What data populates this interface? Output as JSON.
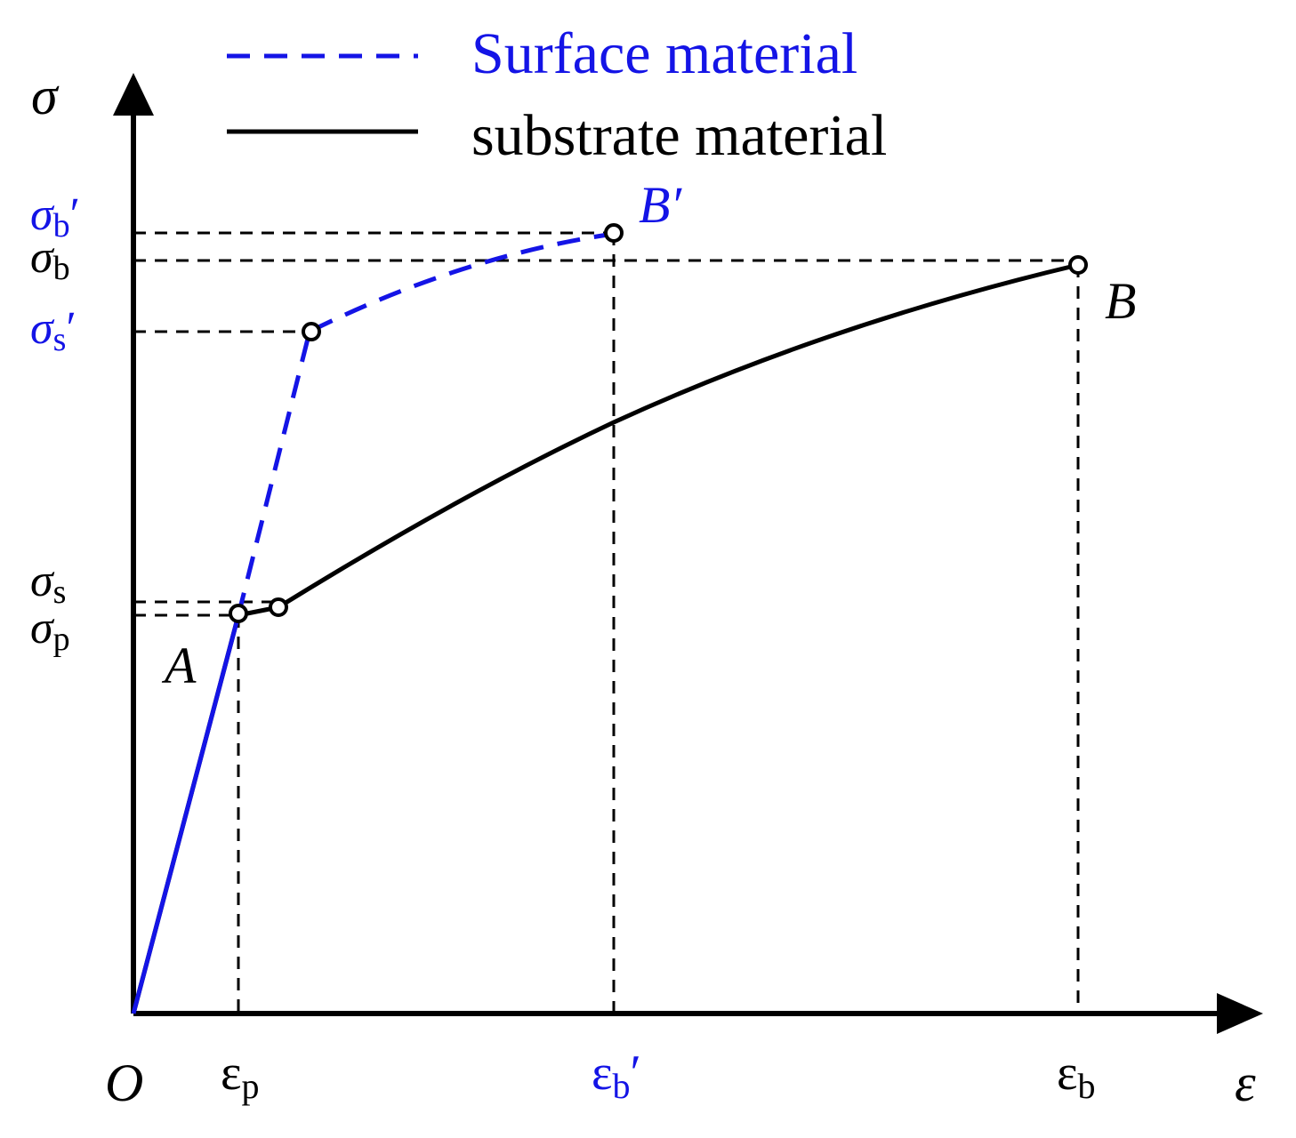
{
  "legend": {
    "surface": "Surface material",
    "substrate": "substrate material"
  },
  "axes": {
    "y_symbol": "σ",
    "x_symbol": "ε",
    "origin": "O"
  },
  "y_labels": {
    "sigma_b_prime": {
      "base": "σ",
      "sub": "b",
      "prime": "′"
    },
    "sigma_b": {
      "base": "σ",
      "sub": "b",
      "prime": ""
    },
    "sigma_s_prime": {
      "base": "σ",
      "sub": "s",
      "prime": "′"
    },
    "sigma_s": {
      "base": "σ",
      "sub": "s",
      "prime": ""
    },
    "sigma_p": {
      "base": "σ",
      "sub": "p",
      "prime": ""
    }
  },
  "x_labels": {
    "eps_p": {
      "base": "ε",
      "sub": "p",
      "prime": ""
    },
    "eps_b_prime": {
      "base": "ε",
      "sub": "b",
      "prime": "′"
    },
    "eps_b": {
      "base": "ε",
      "sub": "b",
      "prime": ""
    }
  },
  "points": {
    "A": "A",
    "B": "B",
    "B_prime": "B′"
  },
  "colors": {
    "surface": "#1414e6",
    "substrate": "#000000"
  }
}
